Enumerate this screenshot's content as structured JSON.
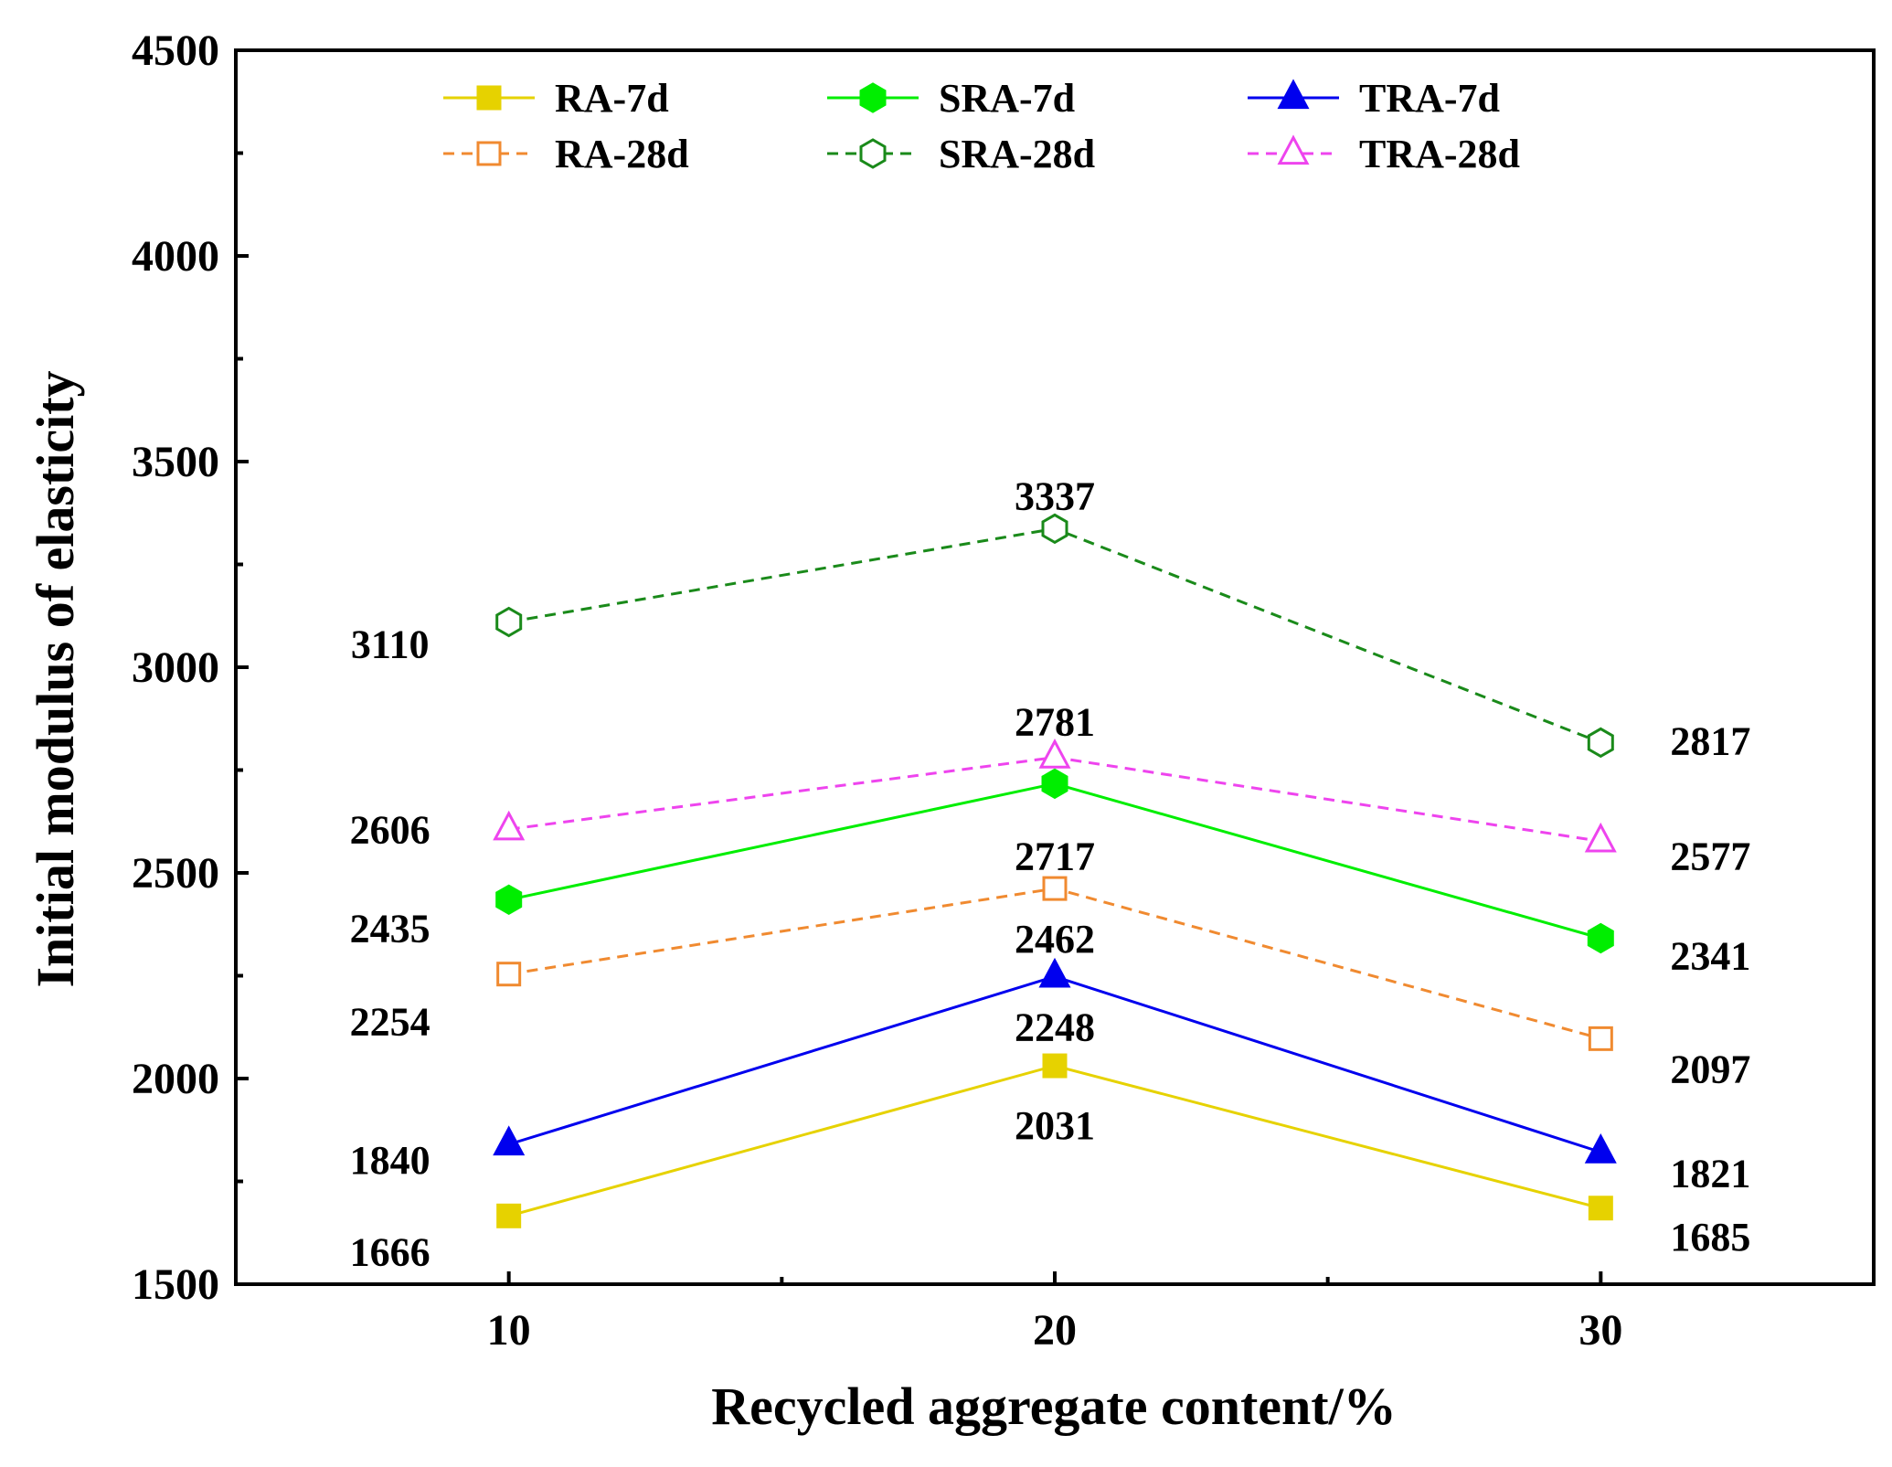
{
  "chart_data": {
    "type": "line",
    "title": "",
    "xlabel": "Recycled aggregate content/%",
    "ylabel": "Initial modulus of elasticity",
    "x": [
      10,
      20,
      30
    ],
    "xlim": [
      5,
      35
    ],
    "ylim": [
      1500,
      4500
    ],
    "xticks": [
      10,
      20,
      30
    ],
    "xtick_labels": [
      "10",
      "20",
      "30"
    ],
    "yticks": [
      1500,
      2000,
      2500,
      3000,
      3500,
      4000,
      4500
    ],
    "ytick_labels": [
      "1500",
      "2000",
      "2500",
      "3000",
      "3500",
      "4000",
      "4500"
    ],
    "grid": false,
    "legend_position": "top",
    "series": [
      {
        "name": "RA-7d",
        "values": [
          1666,
          2031,
          1685
        ],
        "color": "#e6d200",
        "marker": "square",
        "filled": true,
        "dashed": false,
        "labels": [
          "1666",
          "2031",
          "1685"
        ]
      },
      {
        "name": "SRA-7d",
        "values": [
          2435,
          2717,
          2341
        ],
        "color": "#00ee00",
        "marker": "hexagon",
        "filled": true,
        "dashed": false,
        "labels": [
          "2435",
          "2717",
          "2341"
        ]
      },
      {
        "name": "TRA-7d",
        "values": [
          1840,
          2248,
          1821
        ],
        "color": "#0000ee",
        "marker": "triangle",
        "filled": true,
        "dashed": false,
        "labels": [
          "1840",
          "2248",
          "1821"
        ]
      },
      {
        "name": "RA-28d",
        "values": [
          2254,
          2462,
          2097
        ],
        "color": "#f08a30",
        "marker": "square",
        "filled": false,
        "dashed": true,
        "labels": [
          "2254",
          "2462",
          "2097"
        ]
      },
      {
        "name": "SRA-28d",
        "values": [
          3110,
          3337,
          2817
        ],
        "color": "#1a8a1a",
        "marker": "hexagon",
        "filled": false,
        "dashed": true,
        "labels": [
          "3110",
          "3337",
          "2817"
        ]
      },
      {
        "name": "TRA-28d",
        "values": [
          2606,
          2781,
          2577
        ],
        "color": "#ee44ee",
        "marker": "triangle",
        "filled": false,
        "dashed": true,
        "labels": [
          "2606",
          "2781",
          "2577"
        ]
      }
    ]
  }
}
